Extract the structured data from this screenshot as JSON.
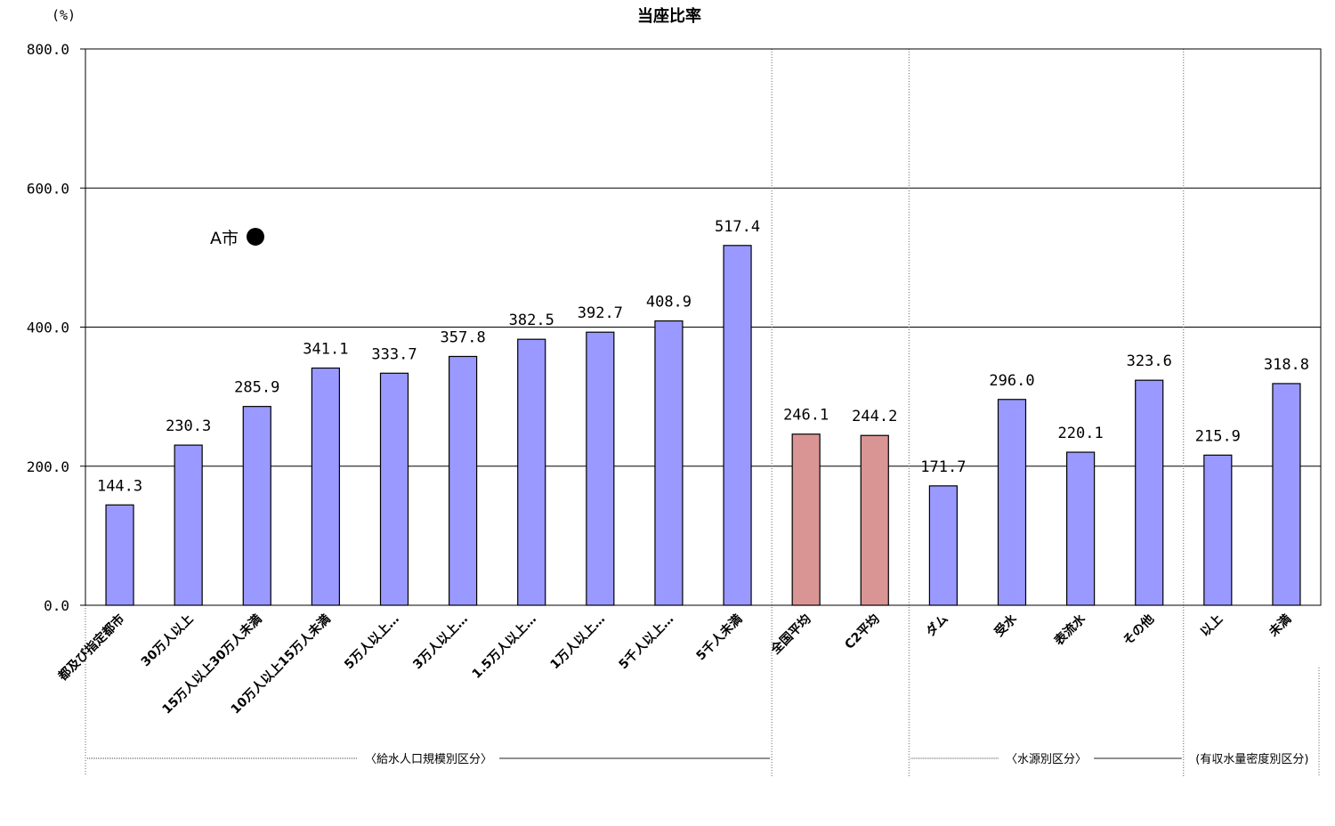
{
  "chart_data": {
    "type": "bar",
    "title": "当座比率",
    "ylabel": "(%)",
    "ylim": [
      0,
      800
    ],
    "yticks": [
      "0.0",
      "200.0",
      "400.0",
      "600.0",
      "800.0"
    ],
    "grid": true,
    "categories": [
      "都及び指定都市",
      "30万人以上",
      "15万人以上30万人未満",
      "10万人以上15万人未満",
      "5万人以上…",
      "3万人以上…",
      "1.5万人以上…",
      "1万人以上…",
      "5千人以上…",
      "5千人未満",
      "全国平均",
      "C2平均",
      "ダム",
      "受水",
      "表流水",
      "その他",
      "以上",
      "未満"
    ],
    "values": [
      144.3,
      230.3,
      285.9,
      341.1,
      333.7,
      357.8,
      382.5,
      392.7,
      408.9,
      517.4,
      246.1,
      244.2,
      171.7,
      296.0,
      220.1,
      323.6,
      215.9,
      318.8
    ],
    "value_labels": [
      "144.3",
      "230.3",
      "285.9",
      "341.1",
      "333.7",
      "357.8",
      "382.5",
      "392.7",
      "408.9",
      "517.4",
      "246.1",
      "244.2",
      "171.7",
      "296.0",
      "220.1",
      "323.6",
      "215.9",
      "318.8"
    ],
    "bar_colors": [
      "#9999ff",
      "#9999ff",
      "#9999ff",
      "#9999ff",
      "#9999ff",
      "#9999ff",
      "#9999ff",
      "#9999ff",
      "#9999ff",
      "#9999ff",
      "#d99594",
      "#d99594",
      "#9999ff",
      "#9999ff",
      "#9999ff",
      "#9999ff",
      "#9999ff",
      "#9999ff"
    ],
    "groups": [
      {
        "label": "〈給水人口規模別区分〉",
        "from": 0,
        "to": 9
      },
      {
        "label": "〈水源別区分〉",
        "from": 12,
        "to": 15
      },
      {
        "label": "(有収水量密度別区分)",
        "from": 16,
        "to": 17
      }
    ],
    "annotations": [
      {
        "label": "A市",
        "marker": "filled-circle",
        "y": 530
      }
    ]
  }
}
